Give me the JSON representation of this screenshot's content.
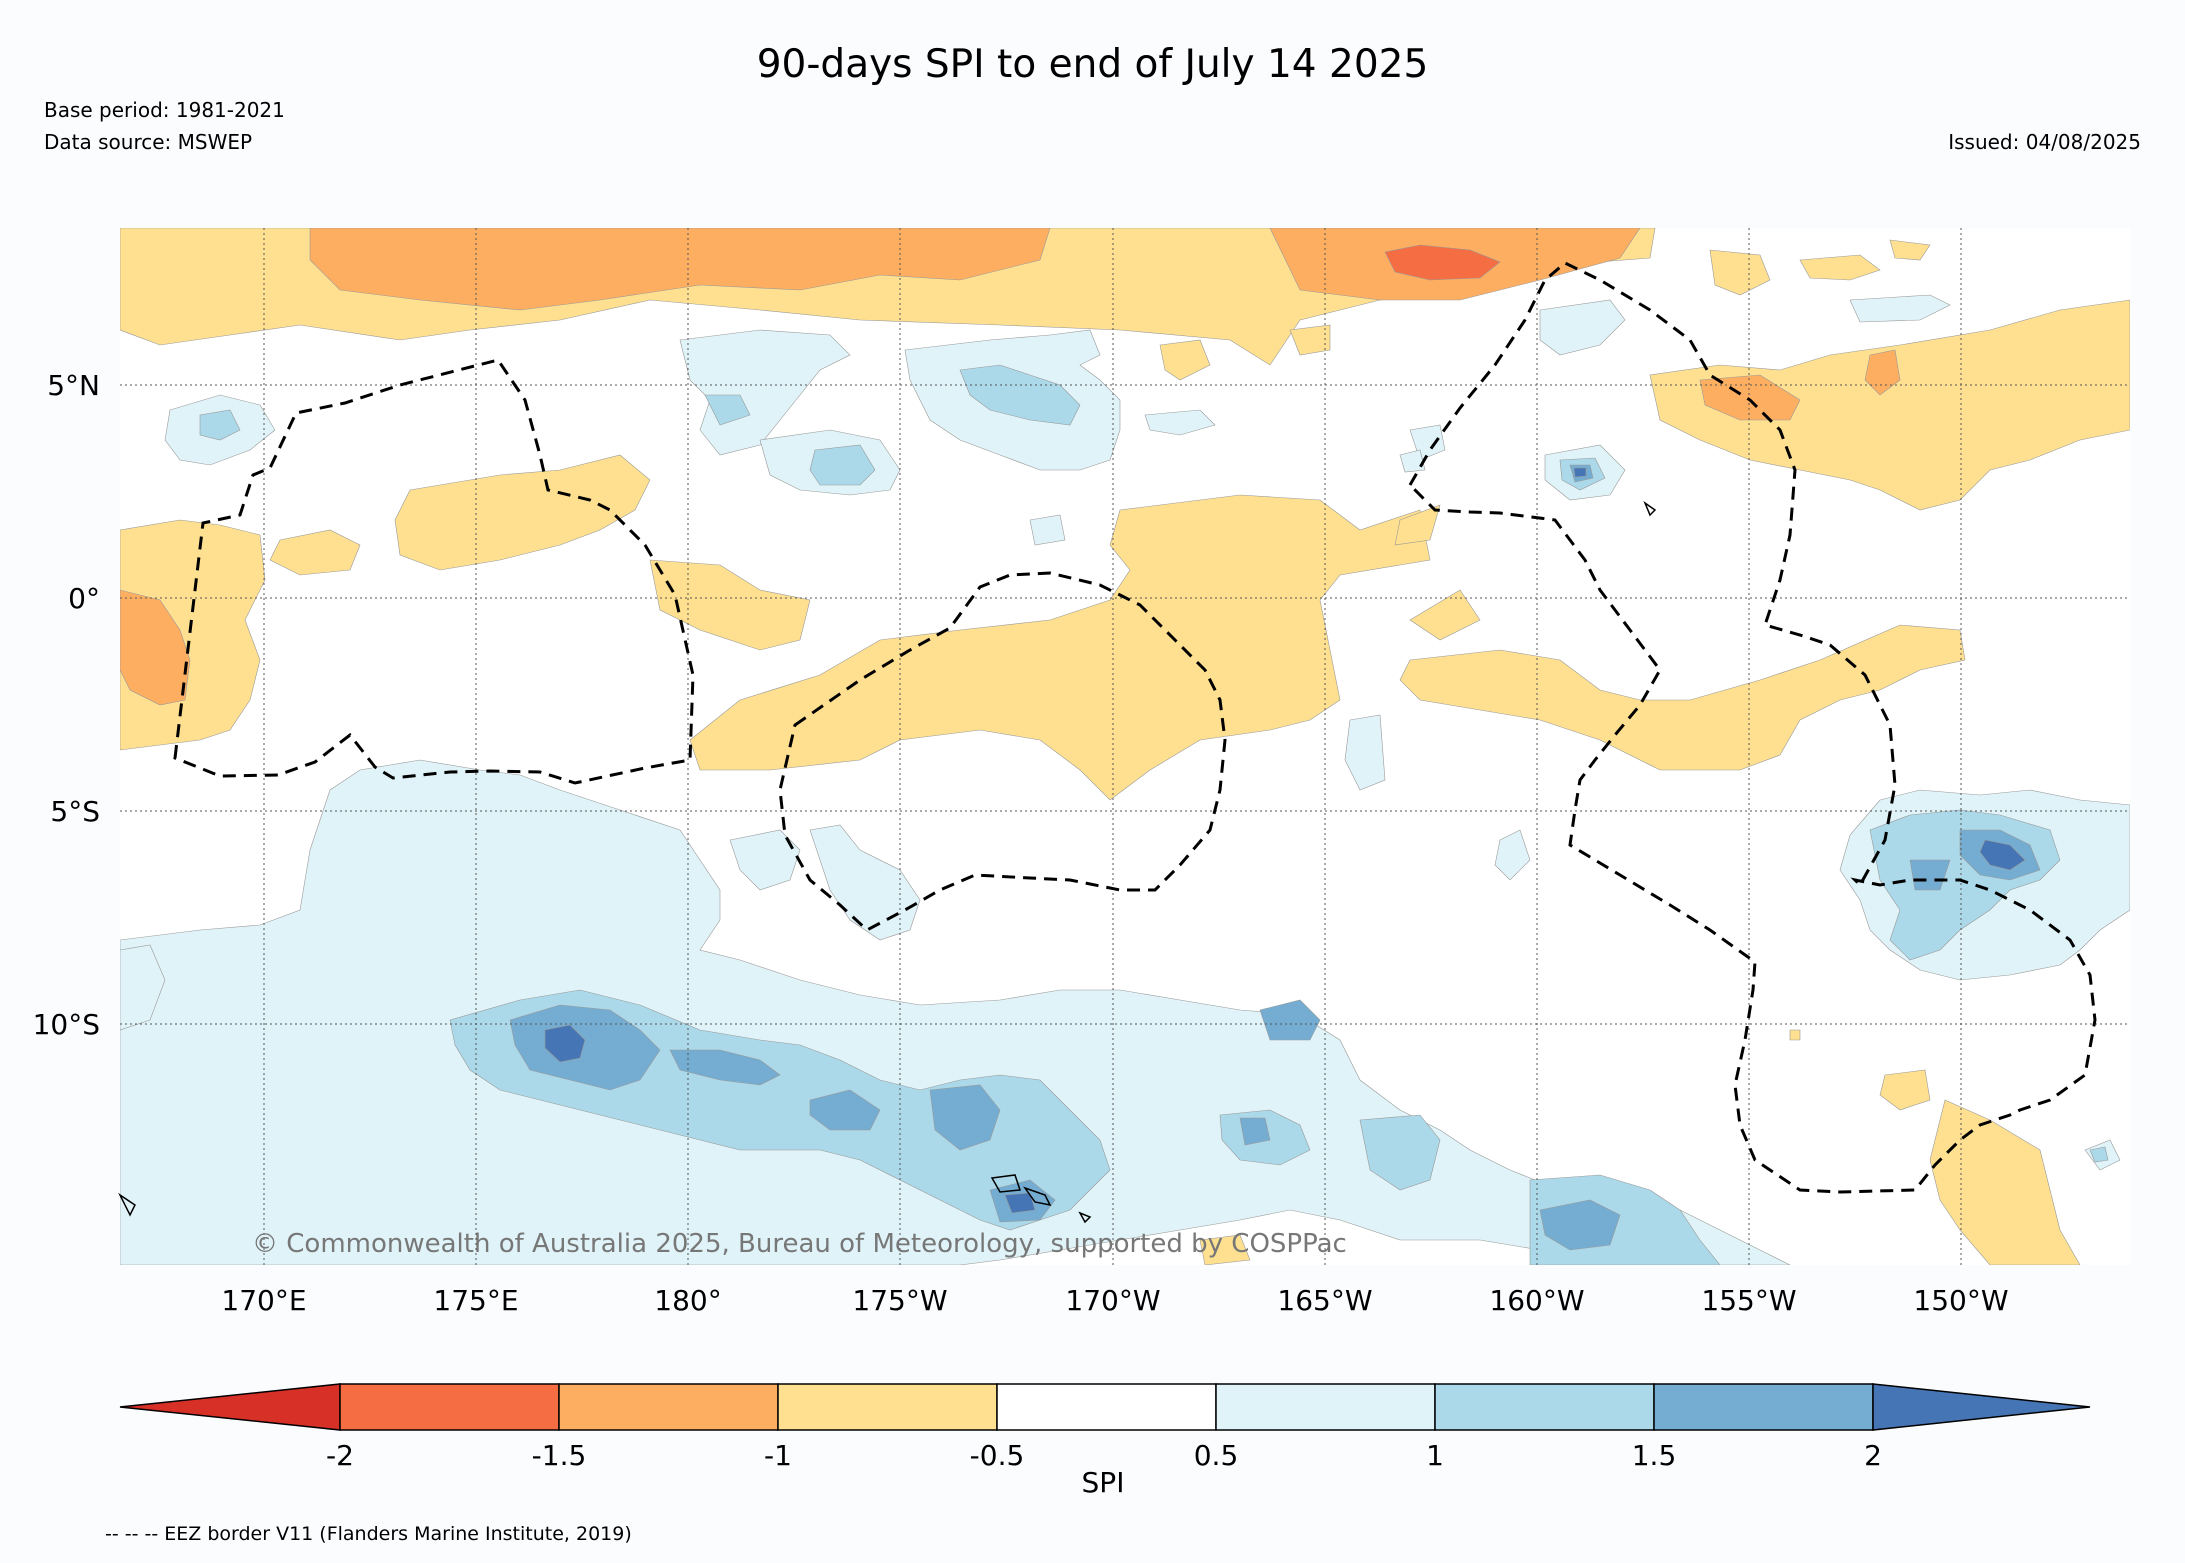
{
  "title": "90-days SPI to end of July 14 2025",
  "base_period": "Base period: 1981-2021",
  "data_source": "Data source: MSWEP",
  "issued": "Issued: 04/08/2025",
  "copyright": "© Commonwealth of Australia 2025, Bureau of Meteorology, supported by COSPPac",
  "lat_labels": [
    "5°N",
    "0°",
    "5°S",
    "10°S"
  ],
  "lon_labels": [
    "170°E",
    "175°E",
    "180°",
    "175°W",
    "170°W",
    "165°W",
    "160°W",
    "155°W",
    "150°W"
  ],
  "colorbar": {
    "label": "SPI",
    "ticks": [
      "-2",
      "-1.5",
      "-1",
      "-0.5",
      "0.5",
      "1",
      "1.5",
      "2"
    ],
    "colors": [
      "#d73027",
      "#f46d43",
      "#fdae61",
      "#fee090",
      "#ffffff",
      "#e0f3f8",
      "#abd9e9",
      "#74add1",
      "#4575b4"
    ]
  },
  "footnote": "-- -- -- EEZ border V11 (Flanders Marine Institute, 2019)",
  "colors": {
    "dry_strong": "#f46d43",
    "dry_moderate": "#fdae61",
    "dry_mild": "#fee090",
    "wet_mild": "#e0f3f8",
    "wet_moderate": "#abd9e9",
    "wet_strong": "#74add1",
    "wet_extreme": "#4575b4"
  }
}
